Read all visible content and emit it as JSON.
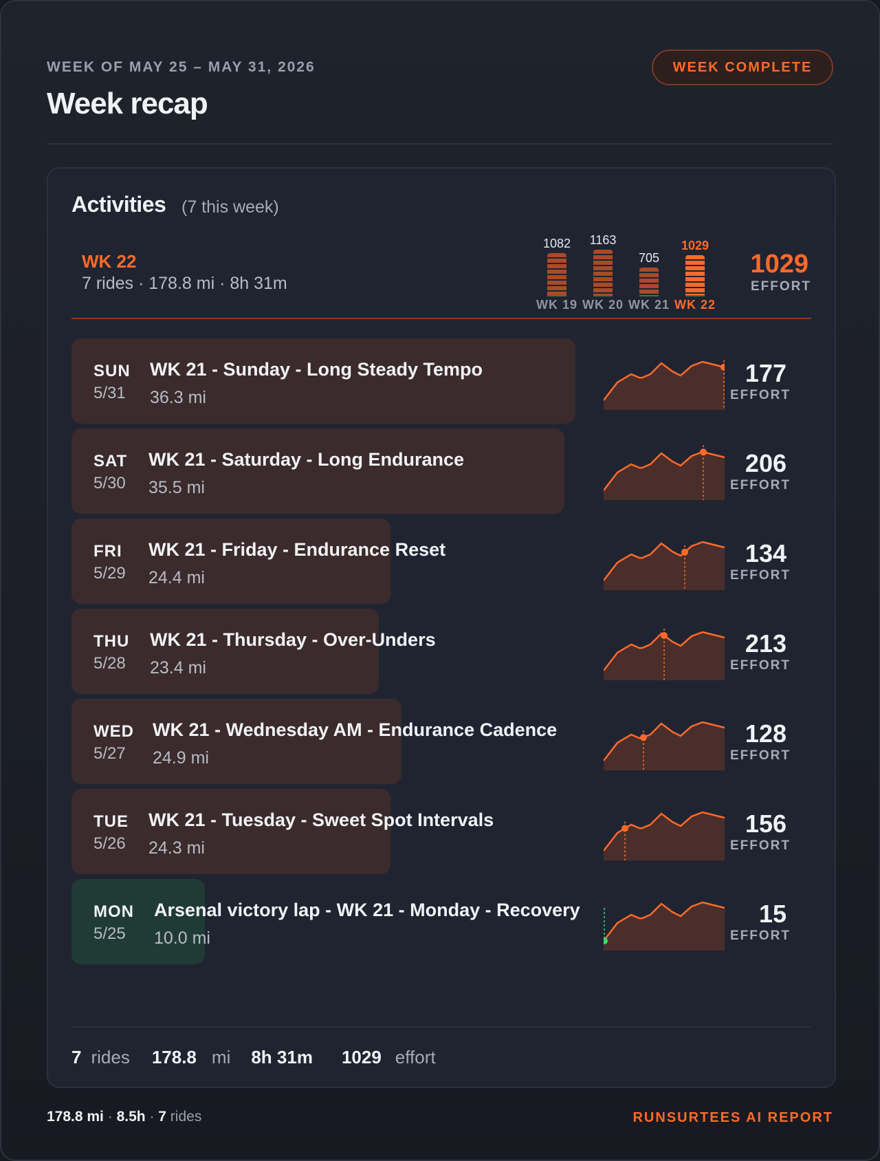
{
  "header": {
    "subtitle": "WEEK OF MAY 25 – MAY 31, 2026",
    "title": "Week recap",
    "badge": "WEEK COMPLETE"
  },
  "activities": {
    "title": "Activities",
    "count": "(7 this week)",
    "week_label": "WK 22",
    "week_summary": "7 rides · 178.8 mi · 8h 31m",
    "total_effort": "1029",
    "effort_label": "EFFORT"
  },
  "chart_data": {
    "type": "bar",
    "categories": [
      "WK 19",
      "WK 20",
      "WK 21",
      "WK 22"
    ],
    "values": [
      1082,
      1163,
      705,
      1029
    ],
    "value_labels": [
      "1082",
      "1163",
      "705",
      "1029"
    ],
    "highlight": "WK 22",
    "colors": {
      "default": "#a94a28",
      "highlight": "#ff6a2a"
    }
  },
  "rides": [
    {
      "day": "SUN",
      "date": "5/31",
      "name": "WK 21 - Sunday - Long Steady Tempo",
      "distance": "36.3 mi",
      "effort": "177",
      "effort_label": "EFFORT",
      "share": 0.68,
      "rest": false,
      "marker": 1.0
    },
    {
      "day": "SAT",
      "date": "5/30",
      "name": "WK 21 - Saturday - Long Endurance",
      "distance": "35.5 mi",
      "effort": "206",
      "effort_label": "EFFORT",
      "share": 0.665,
      "rest": false,
      "marker": 0.83
    },
    {
      "day": "FRI",
      "date": "5/29",
      "name": "WK 21 - Friday - Endurance Reset",
      "distance": "24.4 mi",
      "effort": "134",
      "effort_label": "EFFORT",
      "share": 0.43,
      "rest": false,
      "marker": 0.67
    },
    {
      "day": "THU",
      "date": "5/28",
      "name": "WK 21 - Thursday - Over-Unders",
      "distance": "23.4 mi",
      "effort": "213",
      "effort_label": "EFFORT",
      "share": 0.415,
      "rest": false,
      "marker": 0.5
    },
    {
      "day": "WED",
      "date": "5/27",
      "name": "WK 21 - Wednesday AM - Endurance Cadence",
      "distance": "24.9 mi",
      "effort": "128",
      "effort_label": "EFFORT",
      "share": 0.445,
      "rest": false,
      "marker": 0.33
    },
    {
      "day": "TUE",
      "date": "5/26",
      "name": "WK 21 - Tuesday - Sweet Spot Intervals",
      "distance": "24.3 mi",
      "effort": "156",
      "effort_label": "EFFORT",
      "share": 0.43,
      "rest": false,
      "marker": 0.17
    },
    {
      "day": "MON",
      "date": "5/25",
      "name": "Arsenal victory lap - WK 21 - Monday - Recovery",
      "distance": "10.0 mi",
      "effort": "15",
      "effort_label": "EFFORT",
      "share": 0.18,
      "rest": true,
      "marker": 0.0
    }
  ],
  "totals": {
    "rides_value": "7",
    "rides_unit": "rides",
    "distance_value": "178.8",
    "distance_unit": "mi",
    "time_value": "8h 31m",
    "effort_value": "1029",
    "effort_unit": "effort"
  },
  "footer": {
    "distance": "178.8 mi",
    "sep1": " · ",
    "hours": "8.5h",
    "sep2": " · ",
    "rides_value": "7",
    "rides_unit": " rides",
    "brand": "RUNSURTEES AI REPORT"
  },
  "colors": {
    "accent": "#ff6a2a",
    "ride_bg": "#3b2b2c",
    "rest_bg": "#203b35",
    "rest_dot": "#3ddc6a"
  }
}
